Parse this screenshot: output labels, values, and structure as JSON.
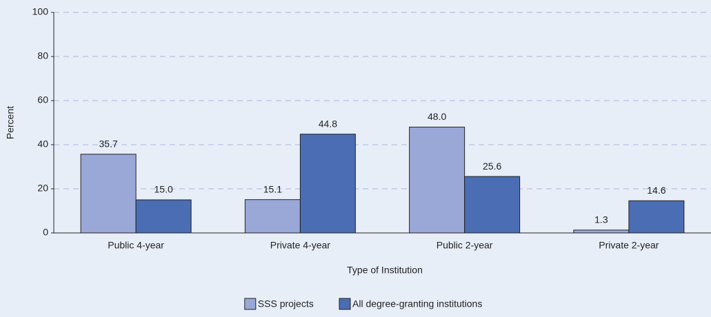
{
  "chart_data": {
    "type": "bar",
    "categories": [
      "Public 4-year",
      "Private 4-year",
      "Public 2-year",
      "Private 2-year"
    ],
    "series": [
      {
        "name": "SSS projects",
        "color": "#9aa8d8",
        "values": [
          35.7,
          15.1,
          48.0,
          1.3
        ],
        "value_labels": [
          "35.7",
          "15.1",
          "48.0",
          "1.3"
        ]
      },
      {
        "name": "All degree-granting institutions",
        "color": "#4a6db4",
        "values": [
          15.0,
          44.8,
          25.6,
          14.6
        ],
        "value_labels": [
          "15.0",
          "44.8",
          "25.6",
          "14.6"
        ]
      }
    ],
    "xlabel": "Type of Institution",
    "ylabel": "Percent",
    "ylim": [
      0,
      100
    ],
    "yticks": [
      0,
      20,
      40,
      60,
      80,
      100
    ],
    "grid": true,
    "legend": "bottom"
  }
}
